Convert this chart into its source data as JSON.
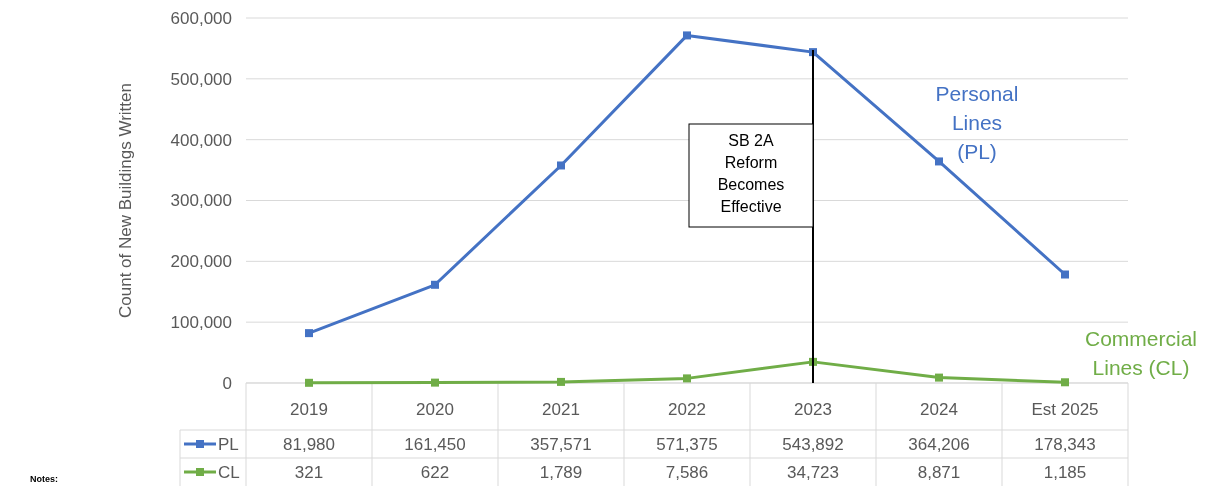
{
  "chart_data": {
    "type": "line",
    "ylabel": "Count of New Buildings Written",
    "categories": [
      "2019",
      "2020",
      "2021",
      "2022",
      "2023",
      "2024",
      "Est 2025"
    ],
    "series": [
      {
        "name": "PL",
        "color": "#4472c4",
        "values": [
          81980,
          161450,
          357571,
          571375,
          543892,
          364206,
          178343
        ],
        "value_labels": [
          "81,980",
          "161,450",
          "357,571",
          "571,375",
          "543,892",
          "364,206",
          "178,343"
        ]
      },
      {
        "name": "CL",
        "color": "#70ad47",
        "values": [
          321,
          622,
          1789,
          7586,
          34723,
          8871,
          1185
        ],
        "value_labels": [
          "321",
          "622",
          "1,789",
          "7,586",
          "34,723",
          "8,871",
          "1,185"
        ]
      }
    ],
    "ylim": [
      0,
      600000
    ],
    "yticks": [
      {
        "value": 0,
        "label": "0"
      },
      {
        "value": 100000,
        "label": "100,000"
      },
      {
        "value": 200000,
        "label": "200,000"
      },
      {
        "value": 300000,
        "label": "300,000"
      },
      {
        "value": 400000,
        "label": "400,000"
      },
      {
        "value": 500000,
        "label": "500,000"
      },
      {
        "value": 600000,
        "label": "600,000"
      }
    ],
    "grid": "y",
    "legend": "bottom",
    "marker": "square",
    "line_style": "solid",
    "ref_lines": [
      {
        "axis": "x",
        "value": "2023",
        "label": "SB 2A Reform Becomes Effective",
        "color": "#000000"
      }
    ],
    "annotations": [
      "Personal Lines (PL)",
      "Commercial Lines (CL)",
      "Notes:"
    ]
  }
}
